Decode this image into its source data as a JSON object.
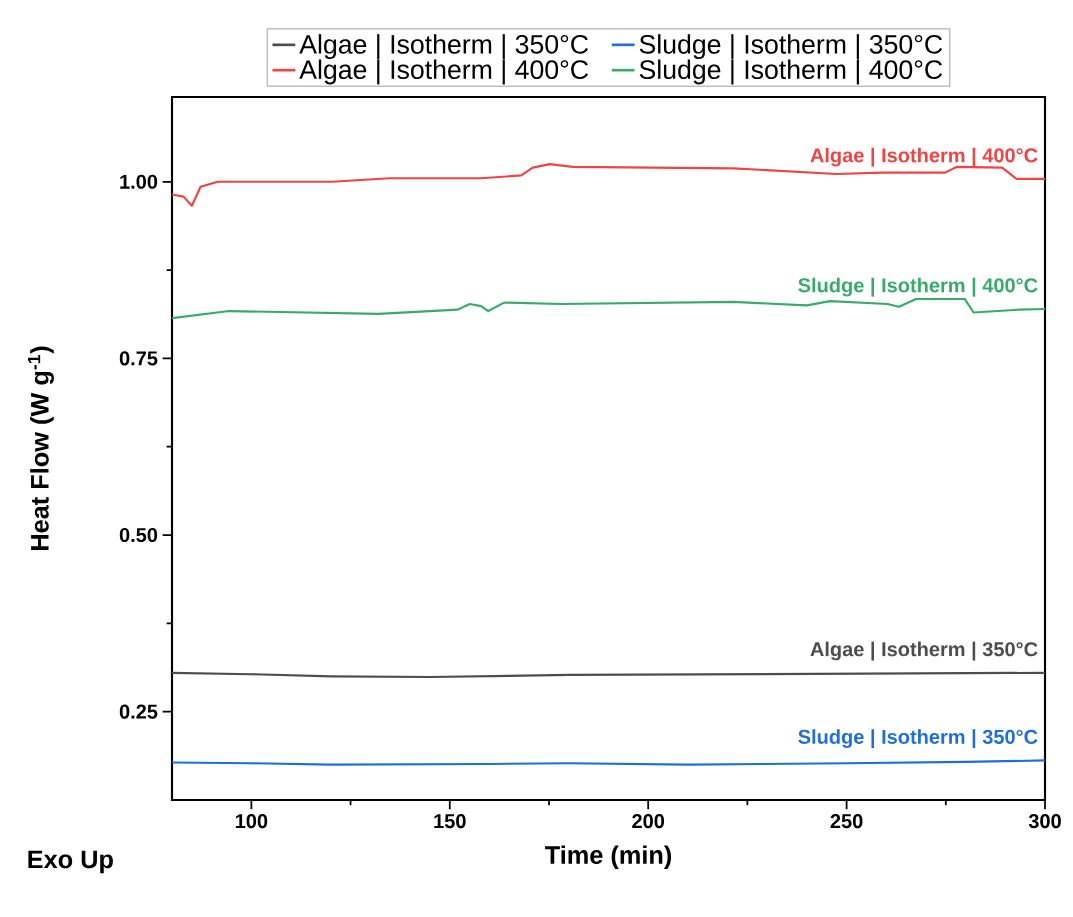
{
  "chart_data": {
    "type": "line",
    "xlabel": "Time (min)",
    "ylabel": "Heat Flow (W g$^{-1}$)",
    "xlim": [
      80,
      300
    ],
    "xticks": [
      100,
      150,
      200,
      250,
      300
    ],
    "ylim": [
      0.125,
      1.12
    ],
    "yticks": [
      {
        "value": 0.25,
        "label": "0.25"
      },
      {
        "value": 0.5,
        "label": "0.50"
      },
      {
        "value": 0.75,
        "label": "0.75"
      },
      {
        "value": 1.0,
        "label": "1.00"
      }
    ],
    "legend": "top",
    "line_style": "solid",
    "annotations": [
      "Exo Up"
    ],
    "series": [
      {
        "name": "Algae | Isotherm | 350°C",
        "color": "#4d4d4d",
        "x": [
          80,
          100,
          120,
          145,
          180,
          220,
          260,
          300
        ],
        "values": [
          0.305,
          0.303,
          0.3,
          0.299,
          0.302,
          0.303,
          0.304,
          0.305
        ]
      },
      {
        "name": "Sludge | Isotherm | 350°C",
        "color": "#1f6fd6",
        "x": [
          80,
          100,
          120,
          160,
          180,
          210,
          250,
          280,
          300
        ],
        "values": [
          0.178,
          0.177,
          0.175,
          0.176,
          0.177,
          0.175,
          0.177,
          0.179,
          0.181
        ]
      },
      {
        "name": "Algae | Isotherm | 400°C",
        "color": "#f04444",
        "x": [
          80,
          82.9,
          85,
          87.2,
          91.5,
          120.4,
          134.8,
          157.9,
          168,
          170.9,
          175.2,
          181,
          221.4,
          247.4,
          259,
          274.8,
          277.7,
          289.2,
          292.8,
          300
        ],
        "values": [
          0.982,
          0.979,
          0.966,
          0.993,
          1.0,
          1.0,
          1.005,
          1.005,
          1.009,
          1.02,
          1.025,
          1.021,
          1.019,
          1.011,
          1.013,
          1.013,
          1.021,
          1.02,
          1.004,
          1.004
        ]
      },
      {
        "name": "Sludge | Isotherm | 400°C",
        "color": "#3aaa6a",
        "x": [
          80,
          94.4,
          132,
          152,
          155,
          157.9,
          159.7,
          163.7,
          178,
          221.4,
          240,
          245.8,
          260.3,
          263.2,
          267.5,
          279.8,
          282,
          293.5,
          300
        ],
        "values": [
          0.807,
          0.817,
          0.813,
          0.819,
          0.827,
          0.824,
          0.817,
          0.829,
          0.827,
          0.83,
          0.825,
          0.831,
          0.827,
          0.823,
          0.834,
          0.834,
          0.815,
          0.819,
          0.82
        ]
      }
    ]
  }
}
